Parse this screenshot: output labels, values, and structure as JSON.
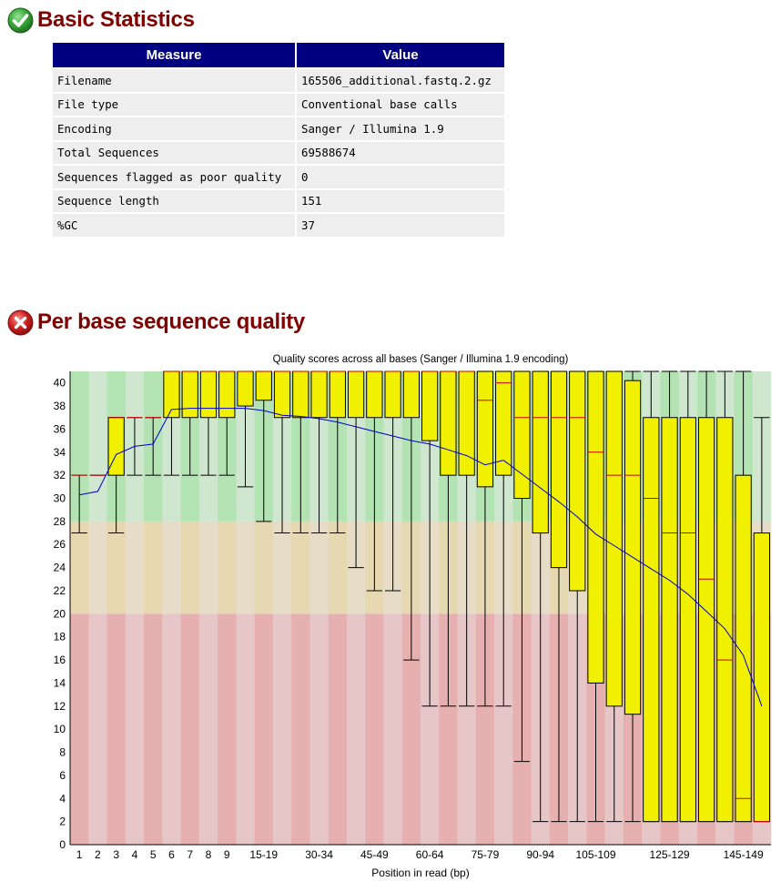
{
  "basic_statistics": {
    "title": "Basic Statistics",
    "status": "pass",
    "status_icon": "check-circle-icon",
    "status_color": "#2e9a2e",
    "header": {
      "measure": "Measure",
      "value": "Value"
    },
    "header_color": "#000080",
    "rows": [
      {
        "measure": "Filename",
        "value": "165506_additional.fastq.2.gz"
      },
      {
        "measure": "File type",
        "value": "Conventional base calls"
      },
      {
        "measure": "Encoding",
        "value": "Sanger / Illumina 1.9"
      },
      {
        "measure": "Total Sequences",
        "value": "69588674"
      },
      {
        "measure": "Sequences flagged as poor quality",
        "value": "0"
      },
      {
        "measure": "Sequence length",
        "value": "151"
      },
      {
        "measure": "%GC",
        "value": "37"
      }
    ]
  },
  "per_base_quality": {
    "title": "Per base sequence quality",
    "status": "fail",
    "status_icon": "cross-circle-icon",
    "status_color": "#d42020",
    "title_color": "#800000"
  },
  "chart_data": {
    "type": "box",
    "title": "Quality scores across all bases (Sanger / Illumina 1.9 encoding)",
    "xlabel": "Position in read (bp)",
    "ylabel": "",
    "ylim": [
      0,
      41
    ],
    "y_ticks": [
      0,
      2,
      4,
      6,
      8,
      10,
      12,
      14,
      16,
      18,
      20,
      22,
      24,
      26,
      28,
      30,
      32,
      34,
      36,
      38,
      40
    ],
    "background_zones": [
      {
        "name": "good",
        "from": 28,
        "to": 41,
        "colors": [
          "#b3e2b3",
          "#cfe6cf"
        ]
      },
      {
        "name": "reasonable",
        "from": 20,
        "to": 28,
        "colors": [
          "#e6d8b0",
          "#e6dcc8"
        ]
      },
      {
        "name": "poor",
        "from": 0,
        "to": 20,
        "colors": [
          "#e6b0b0",
          "#e6c6c6"
        ]
      }
    ],
    "box_color": "#f0f000",
    "median_color": "#cc0000",
    "mean_line_color": "#0000cc",
    "categories": [
      "1",
      "2",
      "3",
      "4",
      "5",
      "6",
      "7",
      "8",
      "9",
      "10-14",
      "15-19",
      "20-24",
      "25-29",
      "30-34",
      "35-39",
      "40-44",
      "45-49",
      "50-54",
      "55-59",
      "60-64",
      "65-69",
      "70-74",
      "75-79",
      "80-84",
      "85-89",
      "90-94",
      "95-99",
      "100-104",
      "105-109",
      "110-114",
      "115-119",
      "120-124",
      "125-129",
      "130-134",
      "135-139",
      "140-144",
      "145-149",
      "150-151"
    ],
    "x_tick_labels": [
      "1",
      "2",
      "3",
      "4",
      "5",
      "6",
      "7",
      "8",
      "9",
      "15-19",
      "30-34",
      "45-49",
      "60-64",
      "75-79",
      "90-94",
      "105-109",
      "125-129",
      "145-149"
    ],
    "series": [
      {
        "name": "mean",
        "values": [
          30.3,
          30.6,
          33.8,
          34.5,
          34.7,
          37.7,
          37.8,
          37.8,
          37.8,
          37.8,
          37.6,
          37.2,
          37.1,
          36.9,
          36.6,
          36.2,
          35.8,
          35.4,
          35.0,
          34.7,
          34.2,
          33.7,
          32.9,
          33.3,
          32.1,
          30.9,
          29.7,
          28.4,
          26.9,
          25.9,
          24.9,
          23.9,
          22.9,
          21.7,
          20.2,
          18.7,
          16.4,
          12.0
        ]
      }
    ],
    "boxes": [
      {
        "q1": 32,
        "median": 32,
        "q3": 32,
        "lower_whisker": 27,
        "upper_whisker": 32
      },
      {
        "q1": 32,
        "median": 32,
        "q3": 32,
        "lower_whisker": 32,
        "upper_whisker": 32
      },
      {
        "q1": 32,
        "median": 37,
        "q3": 37,
        "lower_whisker": 27,
        "upper_whisker": 37
      },
      {
        "q1": 37,
        "median": 37,
        "q3": 37,
        "lower_whisker": 32,
        "upper_whisker": 37
      },
      {
        "q1": 37,
        "median": 37,
        "q3": 37,
        "lower_whisker": 32,
        "upper_whisker": 37
      },
      {
        "q1": 37,
        "median": 41,
        "q3": 41,
        "lower_whisker": 32,
        "upper_whisker": 41
      },
      {
        "q1": 37,
        "median": 41,
        "q3": 41,
        "lower_whisker": 32,
        "upper_whisker": 41
      },
      {
        "q1": 37,
        "median": 41,
        "q3": 41,
        "lower_whisker": 32,
        "upper_whisker": 41
      },
      {
        "q1": 37,
        "median": 41,
        "q3": 41,
        "lower_whisker": 32,
        "upper_whisker": 41
      },
      {
        "q1": 38,
        "median": 41,
        "q3": 41,
        "lower_whisker": 31,
        "upper_whisker": 41
      },
      {
        "q1": 38.5,
        "median": 41,
        "q3": 41,
        "lower_whisker": 28,
        "upper_whisker": 41
      },
      {
        "q1": 37,
        "median": 41,
        "q3": 41,
        "lower_whisker": 27,
        "upper_whisker": 41
      },
      {
        "q1": 37,
        "median": 41,
        "q3": 41,
        "lower_whisker": 27,
        "upper_whisker": 41
      },
      {
        "q1": 37,
        "median": 41,
        "q3": 41,
        "lower_whisker": 27,
        "upper_whisker": 41
      },
      {
        "q1": 37,
        "median": 41,
        "q3": 41,
        "lower_whisker": 27,
        "upper_whisker": 41
      },
      {
        "q1": 37,
        "median": 41,
        "q3": 41,
        "lower_whisker": 24,
        "upper_whisker": 41
      },
      {
        "q1": 37,
        "median": 41,
        "q3": 41,
        "lower_whisker": 22,
        "upper_whisker": 41
      },
      {
        "q1": 37,
        "median": 41,
        "q3": 41,
        "lower_whisker": 22,
        "upper_whisker": 41
      },
      {
        "q1": 37,
        "median": 41,
        "q3": 41,
        "lower_whisker": 16,
        "upper_whisker": 41
      },
      {
        "q1": 35,
        "median": 41,
        "q3": 41,
        "lower_whisker": 12,
        "upper_whisker": 41
      },
      {
        "q1": 32,
        "median": 41,
        "q3": 41,
        "lower_whisker": 12,
        "upper_whisker": 41
      },
      {
        "q1": 32,
        "median": 41,
        "q3": 41,
        "lower_whisker": 12,
        "upper_whisker": 41
      },
      {
        "q1": 31,
        "median": 38.5,
        "q3": 41,
        "lower_whisker": 12,
        "upper_whisker": 41
      },
      {
        "q1": 32,
        "median": 40,
        "q3": 41,
        "lower_whisker": 12,
        "upper_whisker": 41
      },
      {
        "q1": 30,
        "median": 37,
        "q3": 41,
        "lower_whisker": 7.2,
        "upper_whisker": 41
      },
      {
        "q1": 27,
        "median": 37,
        "q3": 41,
        "lower_whisker": 2,
        "upper_whisker": 41
      },
      {
        "q1": 24,
        "median": 37,
        "q3": 41,
        "lower_whisker": 2,
        "upper_whisker": 41
      },
      {
        "q1": 22,
        "median": 37,
        "q3": 41,
        "lower_whisker": 2,
        "upper_whisker": 41
      },
      {
        "q1": 14,
        "median": 34,
        "q3": 41,
        "lower_whisker": 2,
        "upper_whisker": 41
      },
      {
        "q1": 12,
        "median": 32,
        "q3": 41,
        "lower_whisker": 2,
        "upper_whisker": 41
      },
      {
        "q1": 11.3,
        "median": 32,
        "q3": 40.2,
        "lower_whisker": 2,
        "upper_whisker": 41
      },
      {
        "q1": 2,
        "median": 30,
        "q3": 37,
        "lower_whisker": 2,
        "upper_whisker": 41
      },
      {
        "q1": 2,
        "median": 27,
        "q3": 37,
        "lower_whisker": 2,
        "upper_whisker": 41
      },
      {
        "q1": 2,
        "median": 27,
        "q3": 37,
        "lower_whisker": 2,
        "upper_whisker": 41
      },
      {
        "q1": 2,
        "median": 23,
        "q3": 37,
        "lower_whisker": 2,
        "upper_whisker": 41
      },
      {
        "q1": 2,
        "median": 16,
        "q3": 37,
        "lower_whisker": 2,
        "upper_whisker": 41
      },
      {
        "q1": 2,
        "median": 4,
        "q3": 32,
        "lower_whisker": 2,
        "upper_whisker": 41
      },
      {
        "q1": 2,
        "median": 2,
        "q3": 27,
        "lower_whisker": 2,
        "upper_whisker": 37
      }
    ]
  }
}
